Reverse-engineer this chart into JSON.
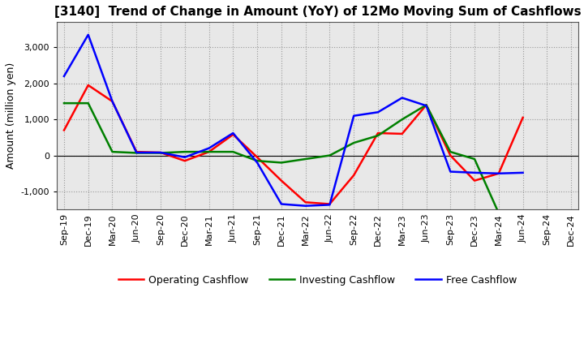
{
  "title": "[3140]  Trend of Change in Amount (YoY) of 12Mo Moving Sum of Cashflows",
  "ylabel": "Amount (million yen)",
  "x_labels": [
    "Sep-19",
    "Dec-19",
    "Mar-20",
    "Jun-20",
    "Sep-20",
    "Dec-20",
    "Mar-21",
    "Jun-21",
    "Sep-21",
    "Dec-21",
    "Mar-22",
    "Jun-22",
    "Sep-22",
    "Dec-22",
    "Mar-23",
    "Jun-23",
    "Sep-23",
    "Dec-23",
    "Mar-24",
    "Jun-24",
    "Sep-24",
    "Dec-24"
  ],
  "operating": [
    700,
    1950,
    1500,
    100,
    80,
    -150,
    100,
    580,
    -50,
    -700,
    -1300,
    -1350,
    -550,
    620,
    600,
    1400,
    0,
    -700,
    -500,
    1050,
    null,
    null
  ],
  "investing": [
    1450,
    1450,
    100,
    70,
    70,
    100,
    100,
    100,
    -150,
    -200,
    -100,
    0,
    350,
    550,
    1000,
    1400,
    100,
    -100,
    -1600,
    null,
    null,
    null
  ],
  "free": [
    2200,
    3350,
    1500,
    80,
    80,
    -50,
    200,
    620,
    -200,
    -1350,
    -1400,
    -1370,
    1100,
    1200,
    1600,
    1380,
    -450,
    -480,
    -500,
    -480,
    null,
    null
  ],
  "operating_color": "#ff0000",
  "investing_color": "#008000",
  "free_color": "#0000ff",
  "ylim": [
    -1500,
    3700
  ],
  "yticks": [
    -1000,
    0,
    1000,
    2000,
    3000
  ],
  "background_color": "#ffffff",
  "plot_bg_color": "#e8e8e8",
  "grid_color": "#999999",
  "title_fontsize": 11,
  "legend_fontsize": 9,
  "axis_fontsize": 8,
  "ylabel_fontsize": 9,
  "linewidth": 1.8
}
